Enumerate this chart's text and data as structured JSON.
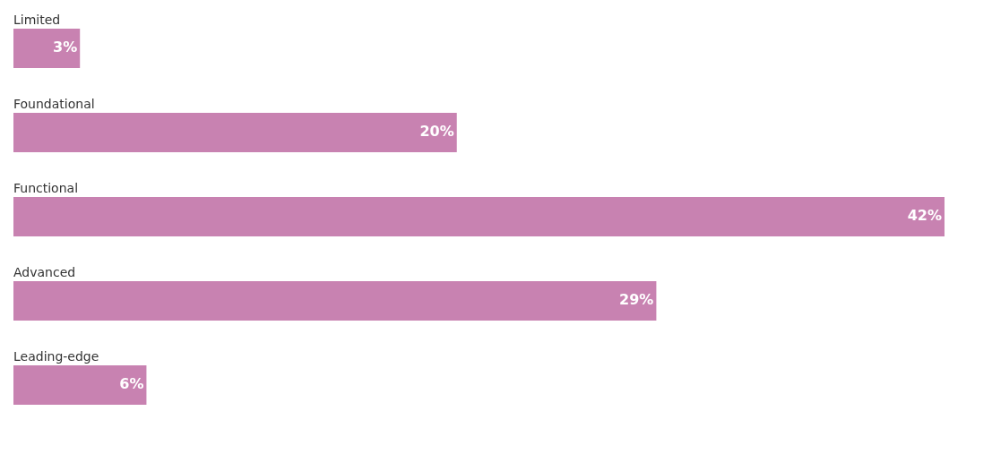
{
  "chart_data": {
    "type": "bar",
    "orientation": "horizontal",
    "categories": [
      "Limited",
      "Foundational",
      "Functional",
      "Advanced",
      "Leading-edge"
    ],
    "values": [
      3,
      20,
      42,
      29,
      6
    ],
    "value_labels": [
      "3%",
      "20%",
      "42%",
      "29%",
      "6%"
    ],
    "color": "#c882b1"
  }
}
